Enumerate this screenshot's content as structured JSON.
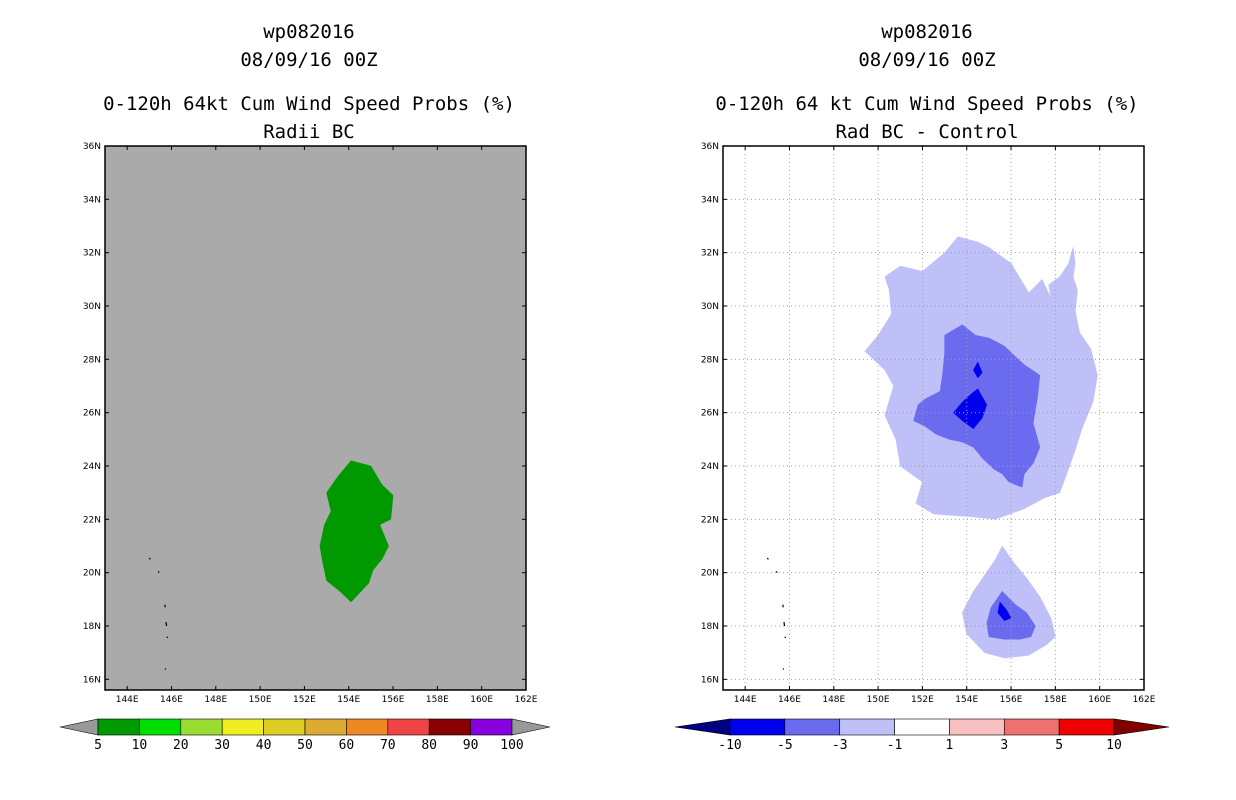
{
  "colors": {
    "ocean_gray": "#aaaaaa",
    "grid_dotted": "#a0a0a0",
    "prob_colors": [
      "#009900",
      "#00dd00",
      "#99dd33",
      "#eeee22",
      "#ddcc22",
      "#ddaa33",
      "#ee8822",
      "#ee4444",
      "#880000",
      "#8800dd"
    ],
    "prob_end_gray": "#999999",
    "diff_colors": [
      "#000080",
      "#0000ee",
      "#6b6bf0",
      "#c0c0f8",
      "#ffffff",
      "#f8c0c0",
      "#f07070",
      "#ee0000",
      "#800000"
    ]
  },
  "chart_data": [
    {
      "type": "contour-map",
      "storm_id": "wp082016",
      "datetime": "08/09/16 00Z",
      "title": "0-120h 64kt Cum Wind Speed Probs (%)",
      "subtitle": "Radii BC",
      "lon_range": [
        143,
        162
      ],
      "lat_range": [
        15.6,
        36
      ],
      "xtick_values": [
        144,
        146,
        148,
        150,
        152,
        154,
        156,
        158,
        160,
        162
      ],
      "xtick_labels": [
        "144E",
        "146E",
        "148E",
        "150E",
        "152E",
        "154E",
        "156E",
        "158E",
        "160E",
        "162E"
      ],
      "ytick_values": [
        16,
        18,
        20,
        22,
        24,
        26,
        28,
        30,
        32,
        34,
        36
      ],
      "ytick_labels": [
        "16N",
        "18N",
        "20N",
        "22N",
        "24N",
        "26N",
        "28N",
        "30N",
        "32N",
        "34N",
        "36N"
      ],
      "gridlines": false,
      "colorbar": {
        "levels": [
          "5",
          "10",
          "20",
          "30",
          "40",
          "50",
          "60",
          "70",
          "80",
          "90",
          "100"
        ],
        "end_arrows": true
      },
      "regions": [
        {
          "level_index": 0,
          "label": "5-10%",
          "points": [
            [
              154.1,
              24.2
            ],
            [
              155,
              24
            ],
            [
              155.5,
              23.3
            ],
            [
              156.0,
              22.9
            ],
            [
              155.9,
              22.0
            ],
            [
              155.4,
              21.8
            ],
            [
              155.8,
              21.0
            ],
            [
              155.5,
              20.5
            ],
            [
              155.1,
              20.1
            ],
            [
              154.9,
              19.6
            ],
            [
              154.1,
              18.9
            ],
            [
              153.6,
              19.3
            ],
            [
              153.0,
              19.7
            ],
            [
              152.8,
              20.5
            ],
            [
              152.7,
              21.0
            ],
            [
              152.9,
              21.8
            ],
            [
              153.2,
              22.3
            ],
            [
              153.0,
              23.0
            ],
            [
              153.5,
              23.6
            ]
          ]
        }
      ],
      "islands": [
        [
          [
            145.0,
            20.55
          ],
          [
            145.05,
            20.5
          ]
        ],
        [
          [
            145.4,
            20.05
          ],
          [
            145.45,
            20.0
          ]
        ],
        [
          [
            145.7,
            18.8
          ],
          [
            145.72,
            18.7
          ]
        ],
        [
          [
            145.75,
            18.15
          ],
          [
            145.78,
            18.0
          ]
        ],
        [
          [
            145.8,
            17.6
          ],
          [
            145.82,
            17.55
          ]
        ],
        [
          [
            145.7,
            16.4
          ],
          [
            145.75,
            16.38
          ]
        ]
      ]
    },
    {
      "type": "contour-map",
      "storm_id": "wp082016",
      "datetime": "08/09/16 00Z",
      "title": "0-120h 64 kt Cum Wind Speed Probs (%)",
      "subtitle": "Rad BC - Control",
      "lon_range": [
        143,
        162
      ],
      "lat_range": [
        15.6,
        36
      ],
      "xtick_values": [
        144,
        146,
        148,
        150,
        152,
        154,
        156,
        158,
        160,
        162
      ],
      "xtick_labels": [
        "144E",
        "146E",
        "148E",
        "150E",
        "152E",
        "154E",
        "156E",
        "158E",
        "160E",
        "162E"
      ],
      "ytick_values": [
        16,
        18,
        20,
        22,
        24,
        26,
        28,
        30,
        32,
        34,
        36
      ],
      "ytick_labels": [
        "16N",
        "18N",
        "20N",
        "22N",
        "24N",
        "26N",
        "28N",
        "30N",
        "32N",
        "34N",
        "36N"
      ],
      "gridlines": true,
      "colorbar": {
        "levels": [
          "-10",
          "-5",
          "-3",
          "-1",
          "1",
          "3",
          "5",
          "10"
        ],
        "end_arrows": true
      },
      "regions": [
        {
          "level_index": 3,
          "label": "-3 to -1",
          "points": [
            [
              153.6,
              32.6
            ],
            [
              154.5,
              32.4
            ],
            [
              155,
              32.2
            ],
            [
              156.0,
              31.6
            ],
            [
              156.8,
              30.5
            ],
            [
              157.4,
              31.0
            ],
            [
              157.8,
              30.3
            ],
            [
              157.7,
              30.8
            ],
            [
              158.2,
              31.1
            ],
            [
              158.6,
              31.6
            ],
            [
              158.8,
              32.2
            ],
            [
              158.9,
              31.6
            ],
            [
              158.8,
              31.1
            ],
            [
              159.0,
              30.6
            ],
            [
              158.9,
              29.8
            ],
            [
              159.1,
              29.0
            ],
            [
              159.6,
              28.4
            ],
            [
              159.9,
              27.4
            ],
            [
              159.7,
              26.4
            ],
            [
              159.2,
              25.4
            ],
            [
              158.9,
              24.6
            ],
            [
              158.6,
              23.9
            ],
            [
              158.2,
              23.0
            ],
            [
              157.5,
              22.8
            ],
            [
              156.6,
              22.4
            ],
            [
              155.3,
              22.0
            ],
            [
              154.2,
              22.1
            ],
            [
              152.5,
              22.2
            ],
            [
              151.7,
              22.6
            ],
            [
              152.0,
              23.4
            ],
            [
              151.0,
              24.0
            ],
            [
              150.8,
              25.0
            ],
            [
              150.3,
              25.9
            ],
            [
              150.7,
              27.0
            ],
            [
              150.3,
              27.6
            ],
            [
              149.4,
              28.3
            ],
            [
              150.0,
              28.9
            ],
            [
              150.6,
              29.7
            ],
            [
              150.5,
              30.6
            ],
            [
              150.3,
              31.1
            ],
            [
              151.0,
              31.5
            ],
            [
              152.0,
              31.3
            ],
            [
              153.0,
              32.0
            ]
          ]
        },
        {
          "level_index": 3,
          "label": "-3 to -1",
          "points": [
            [
              155.6,
              21.0
            ],
            [
              156.1,
              20.4
            ],
            [
              156.7,
              19.8
            ],
            [
              157.3,
              19.1
            ],
            [
              157.8,
              18.3
            ],
            [
              158.0,
              17.6
            ],
            [
              157.6,
              17.3
            ],
            [
              156.8,
              16.9
            ],
            [
              155.7,
              16.8
            ],
            [
              154.8,
              17.0
            ],
            [
              154.0,
              17.7
            ],
            [
              153.8,
              18.5
            ],
            [
              154.3,
              19.3
            ],
            [
              154.8,
              19.9
            ],
            [
              155.3,
              20.5
            ]
          ]
        },
        {
          "level_index": 2,
          "label": "-5 to -3",
          "points": [
            [
              153.8,
              29.3
            ],
            [
              154.4,
              28.9
            ],
            [
              155.0,
              28.8
            ],
            [
              155.7,
              28.5
            ],
            [
              156.2,
              28.1
            ],
            [
              156.6,
              27.8
            ],
            [
              157.3,
              27.4
            ],
            [
              157.2,
              26.6
            ],
            [
              157.0,
              25.6
            ],
            [
              157.3,
              24.7
            ],
            [
              157.0,
              24.1
            ],
            [
              156.6,
              23.7
            ],
            [
              156.5,
              23.2
            ],
            [
              155.9,
              23.4
            ],
            [
              155.6,
              23.7
            ],
            [
              155.2,
              23.9
            ],
            [
              154.7,
              24.3
            ],
            [
              154.3,
              24.7
            ],
            [
              153.8,
              24.9
            ],
            [
              153.2,
              25.0
            ],
            [
              152.6,
              25.2
            ],
            [
              152.1,
              25.5
            ],
            [
              151.6,
              25.7
            ],
            [
              151.8,
              26.3
            ],
            [
              152.1,
              26.5
            ],
            [
              152.8,
              26.8
            ],
            [
              152.9,
              27.4
            ],
            [
              153.0,
              28.2
            ],
            [
              153.0,
              28.9
            ]
          ]
        },
        {
          "level_index": 2,
          "label": "-5 to -3",
          "points": [
            [
              155.6,
              19.3
            ],
            [
              156.2,
              18.8
            ],
            [
              156.7,
              18.5
            ],
            [
              157.1,
              18.0
            ],
            [
              156.9,
              17.6
            ],
            [
              156.4,
              17.5
            ],
            [
              155.7,
              17.5
            ],
            [
              155.0,
              17.6
            ],
            [
              154.9,
              18.1
            ],
            [
              155.1,
              18.7
            ]
          ]
        },
        {
          "level_index": 1,
          "label": "-10 to -5",
          "points": [
            [
              154.5,
              26.9
            ],
            [
              154.9,
              26.3
            ],
            [
              154.7,
              25.8
            ],
            [
              154.3,
              25.4
            ],
            [
              153.8,
              25.7
            ],
            [
              153.4,
              26.0
            ],
            [
              153.8,
              26.4
            ],
            [
              154.2,
              26.7
            ]
          ]
        },
        {
          "level_index": 1,
          "label": "-10 to -5",
          "points": [
            [
              154.5,
              27.9
            ],
            [
              154.7,
              27.5
            ],
            [
              154.5,
              27.3
            ],
            [
              154.3,
              27.6
            ]
          ]
        },
        {
          "level_index": 1,
          "label": "-10 to -5",
          "points": [
            [
              155.5,
              18.9
            ],
            [
              155.8,
              18.6
            ],
            [
              156.0,
              18.3
            ],
            [
              155.7,
              18.2
            ],
            [
              155.4,
              18.5
            ]
          ]
        }
      ],
      "islands": [
        [
          [
            145.0,
            20.55
          ],
          [
            145.05,
            20.5
          ]
        ],
        [
          [
            145.4,
            20.05
          ],
          [
            145.45,
            20.0
          ]
        ],
        [
          [
            145.7,
            18.8
          ],
          [
            145.72,
            18.7
          ]
        ],
        [
          [
            145.75,
            18.15
          ],
          [
            145.78,
            18.0
          ]
        ],
        [
          [
            145.8,
            17.6
          ],
          [
            145.82,
            17.55
          ]
        ],
        [
          [
            145.7,
            16.4
          ],
          [
            145.75,
            16.38
          ]
        ]
      ]
    }
  ]
}
